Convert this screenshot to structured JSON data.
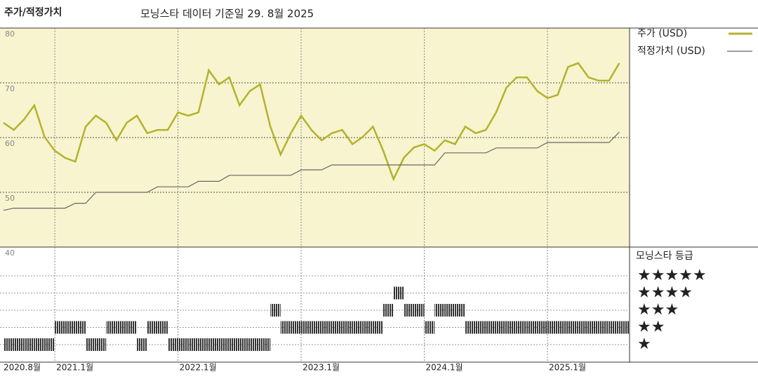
{
  "chart_data": {
    "type": "line",
    "title": "주가/적정가치",
    "subtitle": "모닝스타 데이터 기준일 29. 8월 2025",
    "x": [
      "2020-08",
      "2020-09",
      "2020-10",
      "2020-11",
      "2020-12",
      "2021-01",
      "2021-02",
      "2021-03",
      "2021-04",
      "2021-05",
      "2021-06",
      "2021-07",
      "2021-08",
      "2021-09",
      "2021-10",
      "2021-11",
      "2021-12",
      "2022-01",
      "2022-02",
      "2022-03",
      "2022-04",
      "2022-05",
      "2022-06",
      "2022-07",
      "2022-08",
      "2022-09",
      "2022-10",
      "2022-11",
      "2022-12",
      "2023-01",
      "2023-02",
      "2023-03",
      "2023-04",
      "2023-05",
      "2023-06",
      "2023-07",
      "2023-08",
      "2023-09",
      "2023-10",
      "2023-11",
      "2023-12",
      "2024-01",
      "2024-02",
      "2024-03",
      "2024-04",
      "2024-05",
      "2024-06",
      "2024-07",
      "2024-08",
      "2024-09",
      "2024-10",
      "2024-11",
      "2024-12",
      "2025-01",
      "2025-02",
      "2025-03",
      "2025-04",
      "2025-05",
      "2025-06",
      "2025-07",
      "2025-08"
    ],
    "series": [
      {
        "name": "주가 (USD)",
        "color": "#b3b22e",
        "values": [
          62.7,
          61.4,
          63.3,
          65.9,
          60.1,
          57.6,
          56.3,
          55.6,
          62,
          64,
          62.7,
          59.5,
          62.7,
          64,
          60.8,
          61.4,
          61.4,
          64.6,
          64,
          64.6,
          72.3,
          69.7,
          71,
          65.9,
          68.5,
          69.7,
          62,
          56.9,
          60.8,
          64,
          61.4,
          59.5,
          60.8,
          61.4,
          58.8,
          60.1,
          62,
          57.6,
          52.4,
          56.3,
          58.2,
          58.8,
          57.6,
          59.5,
          58.8,
          62,
          60.8,
          61.4,
          64.6,
          69.1,
          71,
          71,
          68.5,
          67.2,
          67.8,
          72.9,
          73.6,
          71,
          70.4,
          70.4,
          73.6
        ]
      },
      {
        "name": "적정가치 (USD)",
        "color": "#666666",
        "values": [
          46.7,
          47.1,
          47.1,
          47.1,
          47.1,
          47.1,
          47.1,
          48,
          48,
          50,
          50,
          50,
          50,
          50,
          50,
          51,
          51,
          51,
          51,
          52,
          52,
          52,
          53.1,
          53.1,
          53.1,
          53.1,
          53.1,
          53.1,
          53.1,
          54.1,
          54.1,
          54.1,
          55,
          55,
          55,
          55,
          55,
          55,
          55,
          55,
          55,
          55,
          55,
          57.2,
          57.2,
          57.2,
          57.2,
          57.2,
          58.1,
          58.1,
          58.1,
          58.1,
          58.1,
          59.1,
          59.1,
          59.1,
          59.1,
          59.1,
          59.1,
          59.1,
          61
        ]
      }
    ],
    "rating": {
      "name": "모닝스타 등급",
      "color": "#333333",
      "values": [
        1,
        1,
        1,
        1,
        1,
        2,
        2,
        2,
        1,
        1,
        2,
        2,
        2,
        1,
        2,
        2,
        1,
        1,
        1,
        1,
        1,
        1,
        1,
        1,
        1,
        1,
        3,
        2,
        2,
        2,
        2,
        2,
        2,
        2,
        2,
        2,
        2,
        3,
        4,
        3,
        3,
        2,
        3,
        3,
        3,
        2,
        2,
        2,
        2,
        2,
        2,
        2,
        2,
        2,
        2,
        2,
        2,
        2,
        2,
        2,
        2
      ],
      "ticks": [
        {
          "value": 5,
          "label": "★★★★★"
        },
        {
          "value": 4,
          "label": "★★★★"
        },
        {
          "value": 3,
          "label": "★★★"
        },
        {
          "value": 2,
          "label": "★★"
        },
        {
          "value": 1,
          "label": "★"
        }
      ]
    },
    "xlim": [
      "2020-08",
      "2025-09"
    ],
    "xticks": [
      {
        "value": "2020-08",
        "label": "2020.8월"
      },
      {
        "value": "2021-01",
        "label": "2021.1월"
      },
      {
        "value": "2022-01",
        "label": "2022.1월"
      },
      {
        "value": "2023-01",
        "label": "2023.1월"
      },
      {
        "value": "2024-01",
        "label": "2024.1월"
      },
      {
        "value": "2025-01",
        "label": "2025.1월"
      }
    ],
    "ylim": [
      40,
      80
    ],
    "yticks": [
      40,
      50,
      60,
      70,
      80
    ],
    "grid": true
  }
}
